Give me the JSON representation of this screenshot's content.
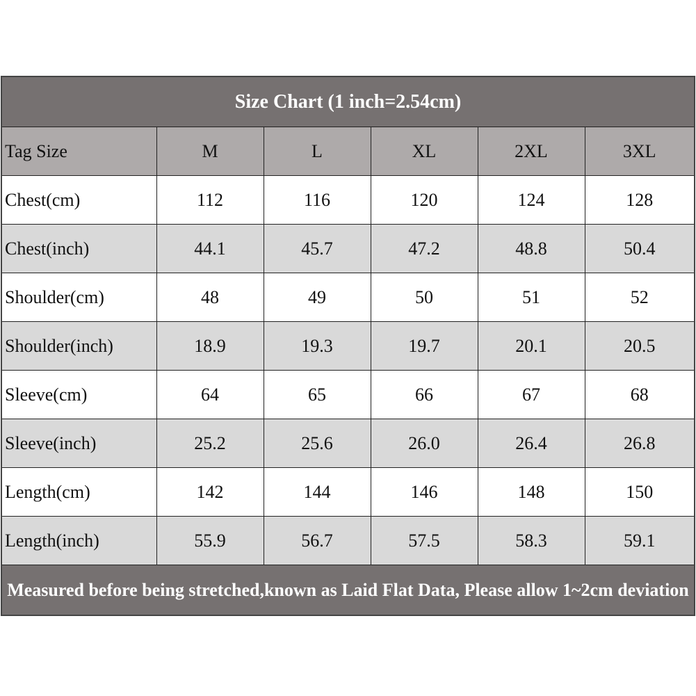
{
  "table": {
    "title": "Size Chart (1 inch=2.54cm)",
    "header": [
      "Tag Size",
      "M",
      "L",
      "XL",
      "2XL",
      "3XL"
    ],
    "rows": [
      [
        "Chest(cm)",
        "112",
        "116",
        "120",
        "124",
        "128"
      ],
      [
        "Chest(inch)",
        "44.1",
        "45.7",
        "47.2",
        "48.8",
        "50.4"
      ],
      [
        "Shoulder(cm)",
        "48",
        "49",
        "50",
        "51",
        "52"
      ],
      [
        "Shoulder(inch)",
        "18.9",
        "19.3",
        "19.7",
        "20.1",
        "20.5"
      ],
      [
        "Sleeve(cm)",
        "64",
        "65",
        "66",
        "67",
        "68"
      ],
      [
        "Sleeve(inch)",
        "25.2",
        "25.6",
        "26.0",
        "26.4",
        "26.8"
      ],
      [
        "Length(cm)",
        "142",
        "144",
        "146",
        "148",
        "150"
      ],
      [
        "Length(inch)",
        "55.9",
        "56.7",
        "57.5",
        "58.3",
        "59.1"
      ]
    ],
    "footer": "Measured before being stretched,known as Laid Flat Data, Please allow 1~2cm deviation"
  }
}
